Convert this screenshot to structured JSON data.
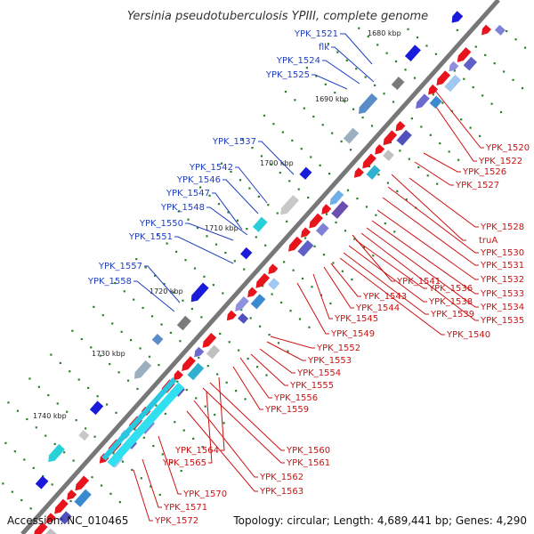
{
  "title": "Yersinia pseudotuberculosis YPIII, complete genome",
  "footer": {
    "accession": "Accession: NC_010465",
    "topology": "Topology: circular; Length: 4,689,441 bp; Genes: 4,290"
  },
  "kbp_labels": [
    "1680 kbp",
    "1690 kbp",
    "1700 kbp",
    "1710 kbp",
    "1720 kbp",
    "1730 kbp",
    "1740 kbp"
  ],
  "left_genes": [
    "YPK_1521",
    "flk",
    "YPK_1524",
    "YPK_1525",
    "YPK_1537",
    "YPK_1542",
    "YPK_1546",
    "YPK_1547",
    "YPK_1548",
    "YPK_1550",
    "YPK_1551",
    "YPK_1557",
    "YPK_1558"
  ],
  "right_genes": [
    "YPK_1520",
    "YPK_1522",
    "YPK_1526",
    "YPK_1527",
    "YPK_1528",
    "truA",
    "YPK_1530",
    "YPK_1531",
    "YPK_1532",
    "YPK_1533",
    "YPK_1534",
    "YPK_1535",
    "YPK_1541",
    "YPK_1536",
    "YPK_1538",
    "YPK_1539",
    "YPK_1540",
    "YPK_1543",
    "YPK_1544",
    "YPK_1545",
    "YPK_1549",
    "YPK_1552",
    "YPK_1553",
    "YPK_1554",
    "YPK_1555",
    "YPK_1556",
    "YPK_1559",
    "YPK_1560",
    "YPK_1561",
    "YPK_1562",
    "YPK_1563",
    "YPK_1564",
    "YPK_1565",
    "YPK_1570",
    "YPK_1571",
    "YPK_1572"
  ],
  "colors": {
    "backbone": "#777777",
    "forward": "#1a1adb",
    "reverse": "#e8141c",
    "blue_label": "#1f3fbf",
    "red_label": "#cc1111",
    "tick": "#2e7d2e"
  }
}
